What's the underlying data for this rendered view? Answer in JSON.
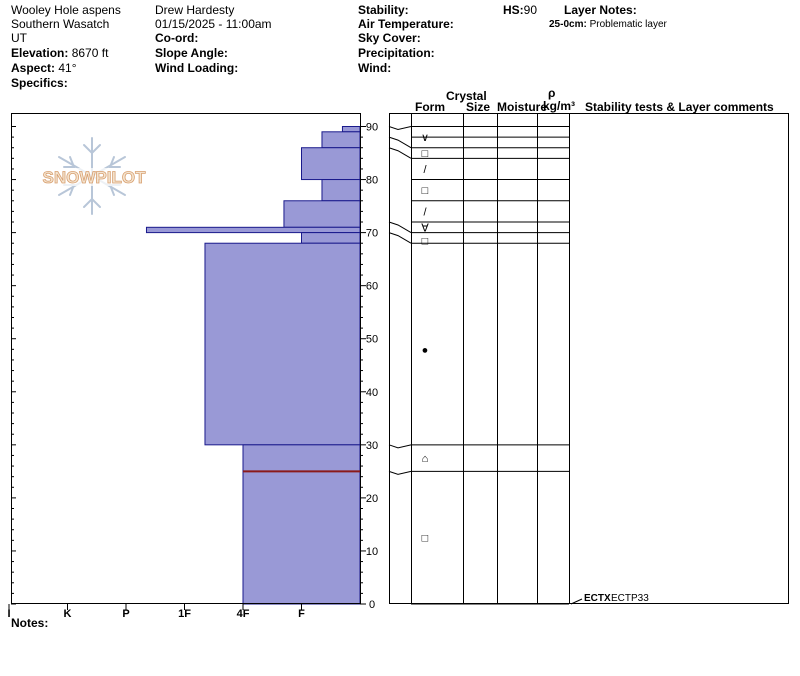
{
  "header": {
    "location": "Wooley Hole aspens",
    "range": "Southern Wasatch",
    "state": "UT",
    "elevation_label": "Elevation:",
    "elevation_value": "8670 ft",
    "aspect_label": "Aspect:",
    "aspect_value": "41°",
    "specifics_label": "Specifics:",
    "observer": "Drew Hardesty",
    "datetime": "01/15/2025 - 11:00am",
    "coord_label": "Co-ord:",
    "slope_label": "Slope Angle:",
    "wind_loading_label": "Wind Loading:",
    "stability_label": "Stability:",
    "air_temp_label": "Air Temperature:",
    "sky_cover_label": "Sky Cover:",
    "precip_label": "Precipitation:",
    "wind_label": "Wind:",
    "hs_label": "HS:",
    "hs_value": "90",
    "layer_notes_label": "Layer Notes:",
    "layer_note_range": "25-0cm:",
    "layer_note_text": "Problematic layer",
    "notes_label": "Notes:"
  },
  "logo": {
    "text": "SNOWPILOT"
  },
  "columns": {
    "crystal": "Crystal",
    "form": "Form",
    "size": "Size",
    "moisture": "Moisture",
    "rho": "ρ",
    "density_unit": "kg/m³",
    "stability_comments": "Stability tests & Layer comments"
  },
  "stability_test": {
    "name": "ECTX",
    "result": "ECTP33",
    "height_cm": 0
  },
  "colors": {
    "hardness_fill": "#9999d6",
    "hardness_stroke": "#1a1a8c",
    "problem_line": "#8b1a1a"
  },
  "chart_data": {
    "type": "snow-profile",
    "y_axis": {
      "unit": "cm",
      "min": 0,
      "max": 90,
      "ticks": [
        0,
        10,
        20,
        30,
        40,
        50,
        60,
        70,
        80,
        90
      ]
    },
    "x_axis": {
      "labels": [
        "I",
        "K",
        "P",
        "1F",
        "4F",
        "F"
      ],
      "direction": "hardness increases to the left"
    },
    "hardness_layers": [
      {
        "bottom": 89,
        "top": 90,
        "hardness": 0.3
      },
      {
        "bottom": 86,
        "top": 89,
        "hardness": 0.65
      },
      {
        "bottom": 80,
        "top": 86,
        "hardness": 1.0
      },
      {
        "bottom": 76,
        "top": 80,
        "hardness": 0.65
      },
      {
        "bottom": 71,
        "top": 76,
        "hardness": 1.3
      },
      {
        "bottom": 70,
        "top": 71,
        "hardness": 3.65
      },
      {
        "bottom": 68,
        "top": 70,
        "hardness": 1.0
      },
      {
        "bottom": 30,
        "top": 68,
        "hardness": 2.65
      },
      {
        "bottom": 0,
        "top": 30,
        "hardness": 2.0
      }
    ],
    "problem_layer_cm": 25,
    "layer_boundaries_cm": [
      90,
      88,
      86,
      84,
      80,
      76,
      72,
      70,
      68,
      30,
      25,
      0
    ],
    "grain_forms": [
      {
        "height_cm": 88,
        "symbol": "∨"
      },
      {
        "height_cm": 85,
        "symbol": "□"
      },
      {
        "height_cm": 82,
        "symbol": "/"
      },
      {
        "height_cm": 78,
        "symbol": "□"
      },
      {
        "height_cm": 74,
        "symbol": "/"
      },
      {
        "height_cm": 71,
        "symbol": "∀"
      },
      {
        "height_cm": 68.5,
        "symbol": "□"
      },
      {
        "height_cm": 48,
        "symbol": "●"
      },
      {
        "height_cm": 27.5,
        "symbol": "⌂"
      },
      {
        "height_cm": 12.5,
        "symbol": "□"
      }
    ]
  }
}
